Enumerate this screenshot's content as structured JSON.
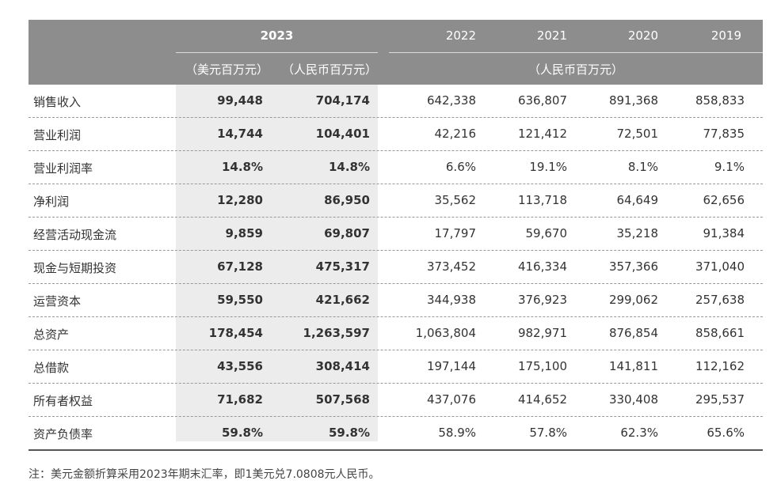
{
  "header": {
    "year_main": "2023",
    "years": [
      "2022",
      "2021",
      "2020",
      "2019"
    ],
    "unit_usd": "（美元百万元）",
    "unit_rmb": "（人民币百万元）",
    "unit_rmb_group": "（人民币百万元）"
  },
  "rows": [
    {
      "label": "销售收入",
      "usd": "99,448",
      "rmb": "704,174",
      "y2022": "642,338",
      "y2021": "636,807",
      "y2020": "891,368",
      "y2019": "858,833"
    },
    {
      "label": "营业利润",
      "usd": "14,744",
      "rmb": "104,401",
      "y2022": "42,216",
      "y2021": "121,412",
      "y2020": "72,501",
      "y2019": "77,835"
    },
    {
      "label": "营业利润率",
      "usd": "14.8%",
      "rmb": "14.8%",
      "y2022": "6.6%",
      "y2021": "19.1%",
      "y2020": "8.1%",
      "y2019": "9.1%"
    },
    {
      "label": "净利润",
      "usd": "12,280",
      "rmb": "86,950",
      "y2022": "35,562",
      "y2021": "113,718",
      "y2020": "64,649",
      "y2019": "62,656"
    },
    {
      "label": "经营活动现金流",
      "usd": "9,859",
      "rmb": "69,807",
      "y2022": "17,797",
      "y2021": "59,670",
      "y2020": "35,218",
      "y2019": "91,384"
    },
    {
      "label": "现金与短期投资",
      "usd": "67,128",
      "rmb": "475,317",
      "y2022": "373,452",
      "y2021": "416,334",
      "y2020": "357,366",
      "y2019": "371,040"
    },
    {
      "label": "运营资本",
      "usd": "59,550",
      "rmb": "421,662",
      "y2022": "344,938",
      "y2021": "376,923",
      "y2020": "299,062",
      "y2019": "257,638"
    },
    {
      "label": "总资产",
      "usd": "178,454",
      "rmb": "1,263,597",
      "y2022": "1,063,804",
      "y2021": "982,971",
      "y2020": "876,854",
      "y2019": "858,661"
    },
    {
      "label": "总借款",
      "usd": "43,556",
      "rmb": "308,414",
      "y2022": "197,144",
      "y2021": "175,100",
      "y2020": "141,811",
      "y2019": "112,162"
    },
    {
      "label": "所有者权益",
      "usd": "71,682",
      "rmb": "507,568",
      "y2022": "437,076",
      "y2021": "414,652",
      "y2020": "330,408",
      "y2019": "295,537"
    },
    {
      "label": "资产负债率",
      "usd": "59.8%",
      "rmb": "59.8%",
      "y2022": "58.9%",
      "y2021": "57.8%",
      "y2020": "62.3%",
      "y2019": "65.6%"
    }
  ],
  "note": "注：美元金额折算采用2023年期末汇率，即1美元兑7.0808元人民币。"
}
